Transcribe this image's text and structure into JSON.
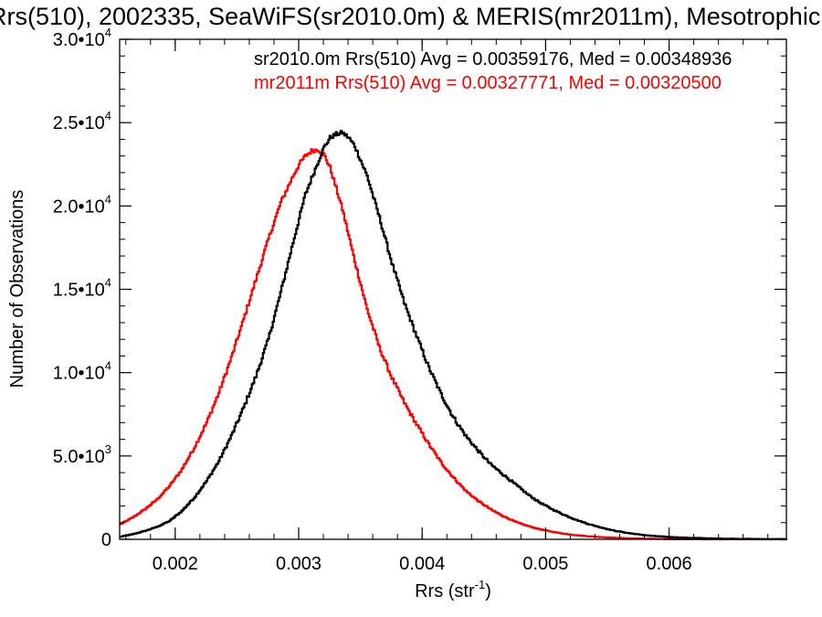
{
  "chart_data": {
    "type": "histogram",
    "title": "Rrs(510), 2002335, SeaWiFS(sr2010.0m) & MERIS(mr2011m), Mesotrophic",
    "xlabel": "Rrs (str",
    "xlabel_sup": "-1",
    "xlabel_suffix": ")",
    "ylabel": "Number of Observations",
    "xlim": [
      0.00155,
      0.00695
    ],
    "ylim": [
      0,
      30000
    ],
    "x_ticks": [
      {
        "value": 0.002,
        "label": "0.002"
      },
      {
        "value": 0.003,
        "label": "0.003"
      },
      {
        "value": 0.004,
        "label": "0.004"
      },
      {
        "value": 0.005,
        "label": "0.005"
      },
      {
        "value": 0.006,
        "label": "0.006"
      }
    ],
    "y_ticks": [
      {
        "value": 0,
        "mant": "0",
        "exp": ""
      },
      {
        "value": 5000,
        "mant": "5.0•10",
        "exp": "3"
      },
      {
        "value": 10000,
        "mant": "1.0•10",
        "exp": "4"
      },
      {
        "value": 15000,
        "mant": "1.5•10",
        "exp": "4"
      },
      {
        "value": 20000,
        "mant": "2.0•10",
        "exp": "4"
      },
      {
        "value": 25000,
        "mant": "2.5•10",
        "exp": "4"
      },
      {
        "value": 30000,
        "mant": "3.0•10",
        "exp": "4"
      }
    ],
    "grid": false,
    "legend_position": "top-right",
    "series": [
      {
        "name": "sr2010.0m Rrs(510) Avg = 0.00359176, Med = 0.00348936",
        "color": "#000000",
        "x": [
          0.00155,
          0.00165,
          0.00175,
          0.00185,
          0.00195,
          0.00205,
          0.00215,
          0.00225,
          0.00235,
          0.00245,
          0.00255,
          0.00265,
          0.00275,
          0.00285,
          0.00295,
          0.00305,
          0.00315,
          0.0032,
          0.00325,
          0.0033,
          0.00335,
          0.0034,
          0.00345,
          0.00355,
          0.00365,
          0.00375,
          0.00385,
          0.00395,
          0.00405,
          0.00415,
          0.00425,
          0.00435,
          0.00445,
          0.00455,
          0.00465,
          0.00475,
          0.00485,
          0.00495,
          0.00505,
          0.00515,
          0.00525,
          0.00535,
          0.00545,
          0.00555,
          0.00565,
          0.00575,
          0.00585,
          0.00595,
          0.00605,
          0.00615,
          0.00625,
          0.00635,
          0.00645,
          0.00655,
          0.00665,
          0.00675,
          0.00685,
          0.00695
        ],
        "y": [
          150,
          300,
          500,
          750,
          1100,
          1700,
          2500,
          3500,
          4700,
          6200,
          7900,
          9800,
          12000,
          14800,
          17800,
          20700,
          22600,
          23500,
          24100,
          24300,
          24400,
          24100,
          23600,
          21800,
          19300,
          16600,
          14200,
          12200,
          10300,
          8700,
          7300,
          6200,
          5300,
          4500,
          3900,
          3300,
          2700,
          2200,
          1800,
          1450,
          1150,
          900,
          700,
          520,
          390,
          290,
          210,
          160,
          120,
          90,
          70,
          50,
          40,
          30,
          20,
          15,
          10,
          5
        ]
      },
      {
        "name": "mr2011m Rrs(510) Avg = 0.00327771, Med = 0.00320500",
        "color": "#ff0000",
        "x": [
          0.00155,
          0.00165,
          0.00175,
          0.00185,
          0.00195,
          0.00205,
          0.00215,
          0.00225,
          0.00235,
          0.00245,
          0.00255,
          0.00265,
          0.00275,
          0.00285,
          0.00295,
          0.003,
          0.00305,
          0.0031,
          0.00315,
          0.0032,
          0.00325,
          0.00335,
          0.00345,
          0.00355,
          0.00365,
          0.00375,
          0.00385,
          0.00395,
          0.00405,
          0.00415,
          0.00425,
          0.00435,
          0.00445,
          0.00455,
          0.00465,
          0.00475,
          0.00485,
          0.00495,
          0.00505,
          0.00515,
          0.00525,
          0.00535,
          0.00545,
          0.00555,
          0.00565,
          0.00575,
          0.00585,
          0.00595,
          0.00605,
          0.00615,
          0.00625,
          0.00635,
          0.00645,
          0.00655,
          0.00665,
          0.00675,
          0.00685,
          0.00695
        ],
        "y": [
          900,
          1300,
          1800,
          2400,
          3200,
          4200,
          5500,
          7000,
          8800,
          10900,
          13200,
          15600,
          18000,
          20200,
          21800,
          22500,
          23000,
          23300,
          23400,
          23100,
          22300,
          19800,
          16700,
          13800,
          11500,
          9700,
          8200,
          6900,
          5700,
          4600,
          3700,
          2900,
          2300,
          1800,
          1400,
          1050,
          800,
          600,
          450,
          330,
          240,
          180,
          130,
          90,
          65,
          45,
          30,
          20,
          15,
          10,
          8,
          5,
          4,
          3,
          2,
          1,
          1,
          0
        ]
      }
    ]
  }
}
